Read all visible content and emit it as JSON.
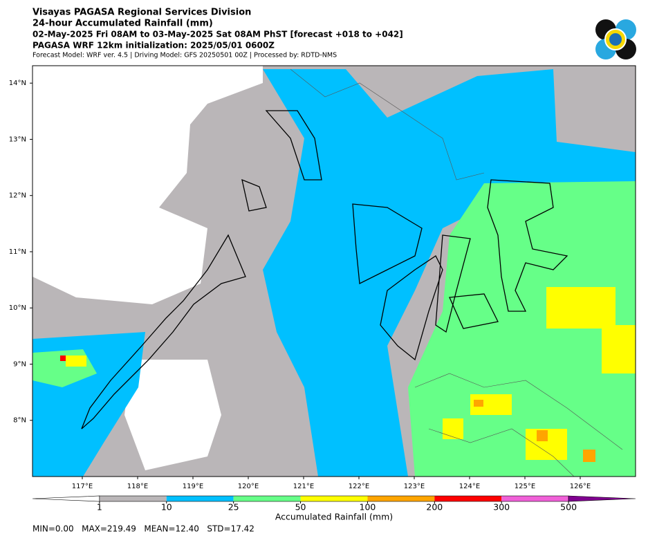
{
  "header": {
    "title": "Visayas PAGASA Regional Services Division",
    "subtitle": "24-hour Accumulated Rainfall (mm)",
    "period": "02-May-2025 Fri 08AM to 03-May-2025 Sat 08AM PhST [forecast +018 to +042]",
    "init": "PAGASA WRF 12km initialization: 2025/05/01 0600Z",
    "model": "Forecast Model: WRF ver. 4.5 | Driving Model: GFS 20250501 00Z | Processed by: RDTD-NMS"
  },
  "map": {
    "xlim": [
      116.1,
      127.0
    ],
    "ylim": [
      7.0,
      14.31
    ],
    "xticks": [
      {
        "value": 117,
        "label": "117°E"
      },
      {
        "value": 118,
        "label": "118°E"
      },
      {
        "value": 119,
        "label": "119°E"
      },
      {
        "value": 120,
        "label": "120°E"
      },
      {
        "value": 121,
        "label": "121°E"
      },
      {
        "value": 122,
        "label": "122°E"
      },
      {
        "value": 123,
        "label": "123°E"
      },
      {
        "value": 124,
        "label": "124°E"
      },
      {
        "value": 125,
        "label": "125°E"
      },
      {
        "value": 126,
        "label": "126°E"
      }
    ],
    "yticks": [
      {
        "value": 8,
        "label": "8°N"
      },
      {
        "value": 9,
        "label": "9°N"
      },
      {
        "value": 10,
        "label": "10°N"
      },
      {
        "value": 11,
        "label": "11°N"
      },
      {
        "value": 12,
        "label": "12°N"
      },
      {
        "value": 13,
        "label": "13°N"
      },
      {
        "value": 14,
        "label": "14°N"
      }
    ]
  },
  "colorbar": {
    "label": "Accumulated Rainfall (mm)",
    "levels": [
      1,
      10,
      25,
      50,
      100,
      200,
      300,
      500
    ],
    "colors": [
      "#bab6b8",
      "#00c0ff",
      "#66ff88",
      "#ffff00",
      "#ffa500",
      "#ff0000",
      "#f060d8"
    ],
    "under_color": "#ffffff",
    "over_color": "#800090"
  },
  "stats": "MIN=0.00   MAX=219.49   MEAN=12.40   STD=17.42"
}
